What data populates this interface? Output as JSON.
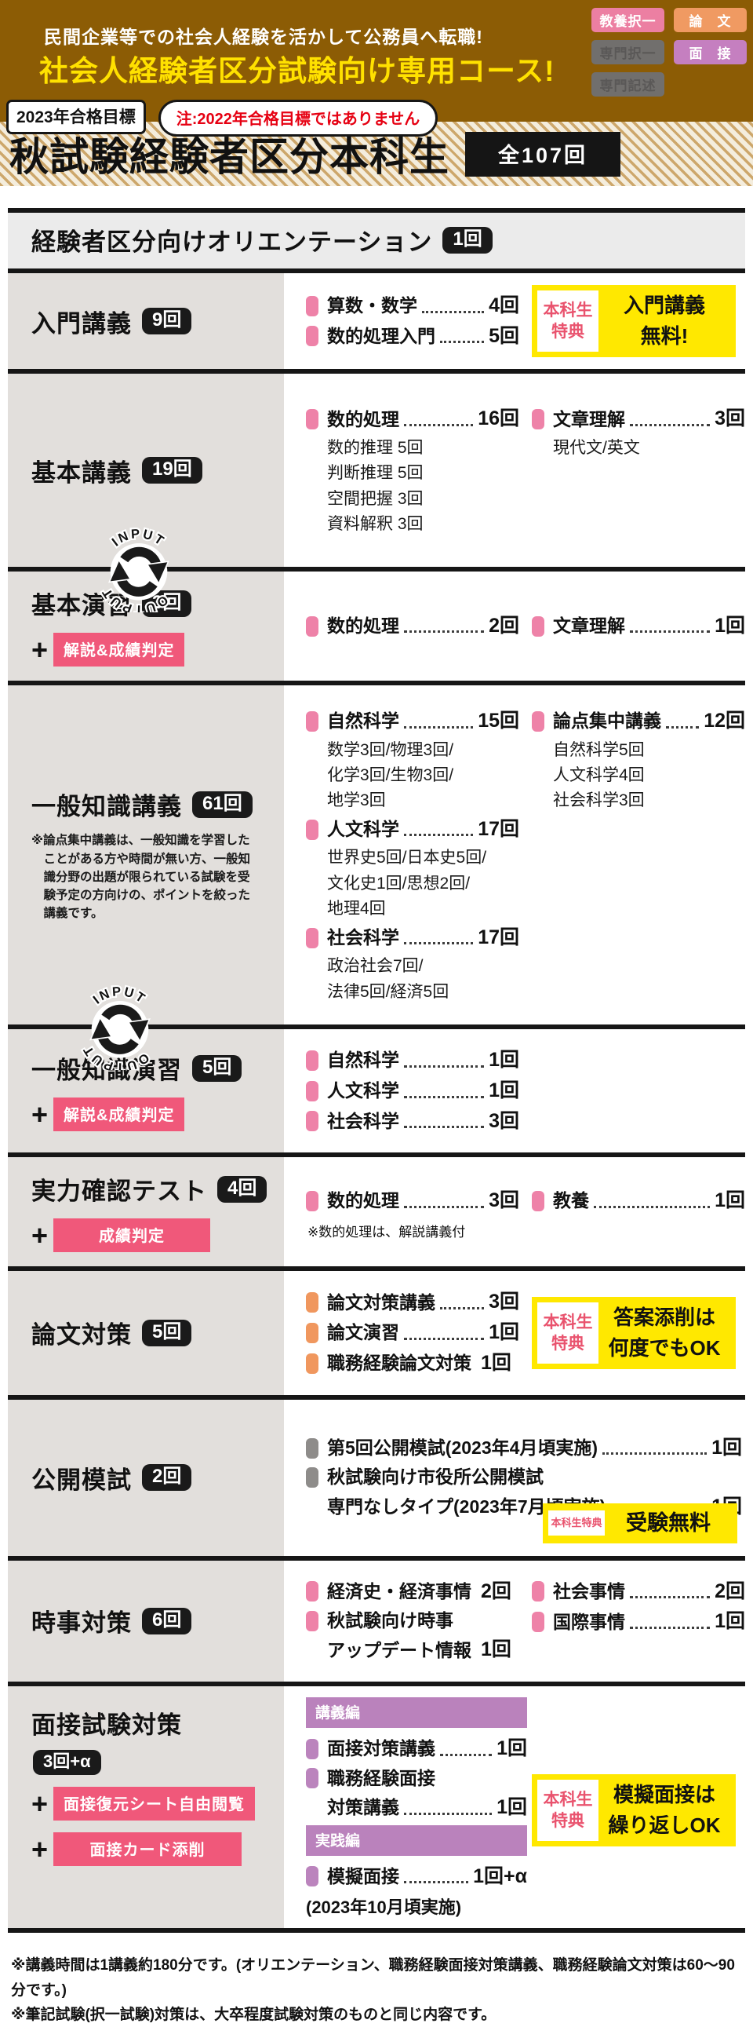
{
  "colors": {
    "hero_brown": "#8c5c05",
    "hero_title_yellow": "#ffe100",
    "badge_pink": "#ec7fa2",
    "badge_orange": "#f09a62",
    "badge_purple": "#c57fc0",
    "badge_gray": "#716f6d",
    "pink_bullet": "#ee82a8",
    "orange_bullet": "#f0975e",
    "gray_bullet": "#8e8c8a",
    "purple_bullet": "#bb84bd",
    "accent_pink_box": "#f0587a",
    "bonus_yellow": "#ffe800",
    "bonus_tag_red": "#e9536e"
  },
  "hero": {
    "subtitle": "民間企業等での社会人経験を活かして公務員へ転職!",
    "title": "社会人経験者区分試験向け専用コース!",
    "badges": [
      {
        "key": "kyoyo-takuitsu",
        "label": "教養択一",
        "color": "#ec7fa2",
        "enabled": true
      },
      {
        "key": "ronbun",
        "label": "論　文",
        "color": "#f09a62",
        "enabled": true
      },
      {
        "key": "senmon-takuitsu",
        "label": "専門択一",
        "color": "#716f6d",
        "enabled": false
      },
      {
        "key": "mensetsu",
        "label": "面　接",
        "color": "#c57fc0",
        "enabled": true
      },
      {
        "key": "senmon-kijutsu",
        "label": "専門記述",
        "color": "#716f6d",
        "enabled": false
      }
    ]
  },
  "goal": {
    "year_badge": "2023年合格目標",
    "note_badge": "注:2022年合格目標ではありません"
  },
  "banner": {
    "title": "秋試験経験者区分本科生",
    "total": "全107回"
  },
  "sections": [
    {
      "id": "orientation",
      "full": true,
      "title": "経験者区分向けオリエンテーション",
      "count": "1回"
    },
    {
      "id": "nyumon",
      "title": "入門講義",
      "count": "9回",
      "cols": [
        [
          {
            "type": "item",
            "bullet": "pink",
            "label": "算数・数学",
            "dots": true,
            "count": "4回"
          },
          {
            "type": "item",
            "bullet": "pink",
            "label": "数的処理入門",
            "dots": true,
            "count": "5回"
          }
        ]
      ],
      "bonus": {
        "tag": "本科生特典",
        "body": [
          "入門講義",
          "無料!"
        ]
      }
    },
    {
      "id": "kihon-kougi",
      "title": "基本講義",
      "count": "19回",
      "cycle_icon": true,
      "cols": [
        [
          {
            "type": "item",
            "bullet": "pink",
            "label": "数的処理",
            "dots": true,
            "count": "16回"
          },
          {
            "type": "sub",
            "text": "数的推理 5回"
          },
          {
            "type": "sub",
            "text": "判断推理 5回"
          },
          {
            "type": "sub",
            "text": "空間把握 3回"
          },
          {
            "type": "sub",
            "text": "資料解釈 3回"
          }
        ],
        [
          {
            "type": "item",
            "bullet": "pink",
            "label": "文章理解",
            "dots": true,
            "count": "3回"
          },
          {
            "type": "sub",
            "text": "現代文/英文"
          }
        ]
      ]
    },
    {
      "id": "kihon-enshu",
      "title": "基本演習",
      "count": "3回",
      "plus_boxes": [
        "解説&成績判定"
      ],
      "cols": [
        [
          {
            "type": "item",
            "bullet": "pink",
            "label": "数的処理",
            "dots": true,
            "count": "2回"
          }
        ],
        [
          {
            "type": "item",
            "bullet": "pink",
            "label": "文章理解",
            "dots": true,
            "count": "1回"
          }
        ]
      ]
    },
    {
      "id": "chishiki-kougi",
      "title": "一般知識講義",
      "count": "61回",
      "cycle_icon": true,
      "note": "※論点集中講義は、一般知識を学習したことがある方や時間が無い方、一般知識分野の出題が限られている試験を受験予定の方向けの、ポイントを絞った講義です。",
      "cols": [
        [
          {
            "type": "item",
            "bullet": "pink",
            "label": "自然科学",
            "dots": true,
            "count": "15回"
          },
          {
            "type": "sub",
            "text": "数学3回/物理3回/"
          },
          {
            "type": "sub",
            "text": "化学3回/生物3回/"
          },
          {
            "type": "sub",
            "text": "地学3回"
          },
          {
            "type": "item",
            "bullet": "pink",
            "label": "人文科学",
            "dots": true,
            "count": "17回"
          },
          {
            "type": "sub",
            "text": "世界史5回/日本史5回/"
          },
          {
            "type": "sub",
            "text": "文化史1回/思想2回/"
          },
          {
            "type": "sub",
            "text": "地理4回"
          },
          {
            "type": "item",
            "bullet": "pink",
            "label": "社会科学",
            "dots": true,
            "count": "17回"
          },
          {
            "type": "sub",
            "text": "政治社会7回/"
          },
          {
            "type": "sub",
            "text": "法律5回/経済5回"
          }
        ],
        [
          {
            "type": "item",
            "bullet": "pink",
            "label": "論点集中講義",
            "dots": true,
            "count": "12回"
          },
          {
            "type": "sub",
            "text": "自然科学5回"
          },
          {
            "type": "sub",
            "text": "人文科学4回"
          },
          {
            "type": "sub",
            "text": "社会科学3回"
          }
        ]
      ]
    },
    {
      "id": "chishiki-enshu",
      "title": "一般知識演習",
      "count": "5回",
      "plus_boxes": [
        "解説&成績判定"
      ],
      "cols": [
        [
          {
            "type": "item",
            "bullet": "pink",
            "label": "自然科学",
            "dots": true,
            "count": "1回"
          },
          {
            "type": "item",
            "bullet": "pink",
            "label": "人文科学",
            "dots": true,
            "count": "1回"
          },
          {
            "type": "item",
            "bullet": "pink",
            "label": "社会科学",
            "dots": true,
            "count": "3回"
          }
        ]
      ]
    },
    {
      "id": "jitsuryoku",
      "title": "実力確認テスト",
      "count": "4回",
      "plus_boxes": [
        "成績判定"
      ],
      "cols": [
        [
          {
            "type": "item",
            "bullet": "pink",
            "label": "数的処理",
            "dots": true,
            "count": "3回"
          },
          {
            "type": "note",
            "text": "※数的処理は、解説講義付"
          }
        ],
        [
          {
            "type": "item",
            "bullet": "pink",
            "label": "教養",
            "dots": true,
            "count": "1回"
          }
        ]
      ]
    },
    {
      "id": "ronbun",
      "title": "論文対策",
      "count": "5回",
      "cols": [
        [
          {
            "type": "item",
            "bullet": "orange",
            "label": "論文対策講義",
            "dots": true,
            "count": "3回"
          },
          {
            "type": "item",
            "bullet": "orange",
            "label": "論文演習",
            "dots": true,
            "count": "1回"
          },
          {
            "type": "item",
            "bullet": "orange",
            "label": "職務経験論文対策",
            "count": "1回"
          }
        ]
      ],
      "bonus": {
        "tag": "本科生特典",
        "body": [
          "答案添削は",
          "何度でもOK"
        ]
      }
    },
    {
      "id": "koukai",
      "title": "公開模試",
      "count": "2回",
      "cols": [
        [
          {
            "type": "item",
            "bullet": "gray",
            "label": "第5回公開模試(2023年4月頃実施)",
            "dots": true,
            "count": "1回"
          },
          {
            "type": "item",
            "bullet": "gray",
            "label": "秋試験向け市役所公開模試"
          },
          {
            "type": "cont",
            "label": "専門なしタイプ(2023年7月頃実施)",
            "dots": true,
            "count": "1回"
          }
        ]
      ],
      "bonus": {
        "tag": "本科生特典",
        "body": [
          "受験無料"
        ],
        "small": true
      }
    },
    {
      "id": "jiji",
      "title": "時事対策",
      "count": "6回",
      "cols": [
        [
          {
            "type": "item",
            "bullet": "pink",
            "label": "経済史・経済事情",
            "count": "2回"
          },
          {
            "type": "item",
            "bullet": "pink",
            "label": "秋試験向け時事"
          },
          {
            "type": "cont",
            "label": "アップデート情報",
            "count": "1回"
          }
        ],
        [
          {
            "type": "item",
            "bullet": "pink",
            "label": "社会事情",
            "dots": true,
            "count": "2回"
          },
          {
            "type": "item",
            "bullet": "pink",
            "label": "国際事情",
            "dots": true,
            "count": "1回"
          }
        ]
      ]
    },
    {
      "id": "mensetsu",
      "title": "面接試験対策",
      "count": "3回+α",
      "count_below": true,
      "plus_boxes": [
        "面接復元シート自由閲覧",
        "面接カード添削"
      ],
      "cols": [
        [
          {
            "type": "header",
            "text": "講義編"
          },
          {
            "type": "item",
            "bullet": "purple",
            "label": "面接対策講義",
            "dots": true,
            "count": "1回"
          },
          {
            "type": "item",
            "bullet": "purple",
            "label": "職務経験面接"
          },
          {
            "type": "cont",
            "label": "対策講義",
            "dots": true,
            "count": "1回"
          },
          {
            "type": "header",
            "text": "実践編"
          },
          {
            "type": "item",
            "bullet": "purple",
            "label": "模擬面接",
            "dots": true,
            "count": "1回+α"
          },
          {
            "type": "plain",
            "text": "(2023年10月頃実施)"
          }
        ]
      ],
      "bonus": {
        "tag": "本科生特典",
        "body": [
          "模擬面接は",
          "繰り返しOK"
        ]
      }
    }
  ],
  "cycle_icon": {
    "top_label": "INPUT",
    "bottom_label": "OUTPUT"
  },
  "footer": {
    "note1": "※講義時間は1講義約180分です。(オリエンテーション、職務経験面接対策講義、職務経験論文対策は60〜90分です。)",
    "note2": "※筆記試験(択一試験)対策は、大卒程度試験対策のものと同じ内容です。"
  }
}
